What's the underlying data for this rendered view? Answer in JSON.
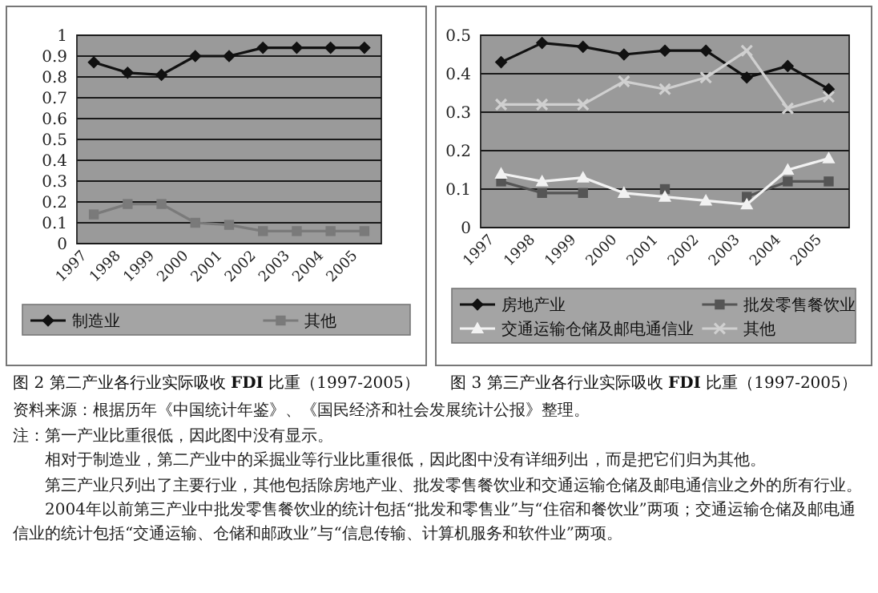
{
  "chart_data": [
    {
      "type": "line",
      "title": "图 2 第二产业各行业实际吸收 **FDI** 比重（1997-2005）",
      "categories": [
        "1997",
        "1998",
        "1999",
        "2000",
        "2001",
        "2002",
        "2003",
        "2004",
        "2005"
      ],
      "series": [
        {
          "name": "制造业",
          "color": "#111111",
          "marker": "diamond",
          "values": [
            0.87,
            0.82,
            0.81,
            0.9,
            0.9,
            0.94,
            0.94,
            0.94,
            0.94
          ]
        },
        {
          "name": "其他",
          "color": "#7a7a7a",
          "marker": "square",
          "values": [
            0.14,
            0.19,
            0.19,
            0.1,
            0.09,
            0.06,
            0.06,
            0.06,
            0.06
          ]
        }
      ],
      "ylim": [
        0,
        1
      ],
      "yticks": [
        0,
        0.1,
        0.2,
        0.3,
        0.4,
        0.5,
        0.6,
        0.7,
        0.8,
        0.9,
        1
      ],
      "grid": "y",
      "legend": "bottom",
      "annotations": [
        "资料来源：根据历年《中国统计年鉴》、《国民经济和社会发展统计公报》整理。",
        "注：第一产业比重很低，因此图中没有显示。",
        "相对于制造业，第二产业中的采掘业等行业比重很低，因此图中没有详细列出，而是把它们归为其他。",
        "第三产业只列出了主要行业，其他包括除房地产业、批发零售餐饮业和交通运输仓储及邮电通信业之外的所有行业。",
        "2004年以前第三产业中批发零售餐饮业的统计包括“批发和零售业”与“住宿和餐饮业”两项；交通运输仓储及邮电通信业的统计包括“交通运输、仓储和邮政业”与“信息传输、计算机服务和软件业”两项。"
      ]
    },
    {
      "type": "line",
      "title": "图 3 第三产业各行业实际吸收 **FDI** 比重（1997-2005）",
      "categories": [
        "1997",
        "1998",
        "1999",
        "2000",
        "2001",
        "2002",
        "2003",
        "2004",
        "2005"
      ],
      "series": [
        {
          "name": "房地产业",
          "color": "#111111",
          "marker": "diamond",
          "values": [
            0.43,
            0.48,
            0.47,
            0.45,
            0.46,
            0.46,
            0.39,
            0.42,
            0.36
          ]
        },
        {
          "name": "批发零售餐饮业",
          "color": "#555555",
          "marker": "square",
          "values": [
            0.12,
            0.09,
            0.09,
            null,
            0.1,
            null,
            0.08,
            0.12,
            0.12
          ]
        },
        {
          "name": "交通运输仓储及邮电通信业",
          "color": "#f2f2f2",
          "marker": "triangle",
          "values": [
            0.14,
            0.12,
            0.13,
            0.09,
            0.08,
            0.07,
            0.06,
            0.15,
            0.18
          ]
        },
        {
          "name": "其他",
          "color": "#d0d0d0",
          "marker": "cross",
          "values": [
            0.32,
            0.32,
            0.32,
            0.38,
            0.36,
            0.39,
            0.46,
            0.31,
            0.34
          ]
        }
      ],
      "ylim": [
        0,
        0.5
      ],
      "yticks": [
        0,
        0.1,
        0.2,
        0.3,
        0.4,
        0.5
      ],
      "grid": "y",
      "legend": "bottom"
    }
  ]
}
